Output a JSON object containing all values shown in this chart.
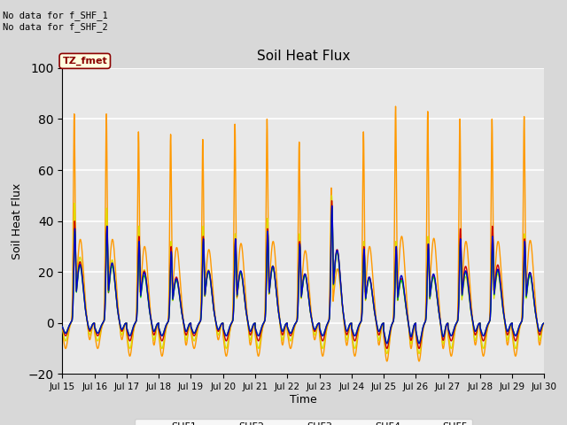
{
  "title": "Soil Heat Flux",
  "ylabel": "Soil Heat Flux",
  "xlabel": "Time",
  "ylim": [
    -20,
    100
  ],
  "yticks": [
    -20,
    0,
    20,
    40,
    60,
    80,
    100
  ],
  "xtick_labels": [
    "Jul 15",
    "Jul 16",
    "Jul 17",
    "Jul 18",
    "Jul 19",
    "Jul 20",
    "Jul 21",
    "Jul 22",
    "Jul 23",
    "Jul 24",
    "Jul 25",
    "Jul 26",
    "Jul 27",
    "Jul 28",
    "Jul 29",
    "Jul 30"
  ],
  "colors": {
    "SHF1": "#cc0000",
    "SHF2": "#ff9900",
    "SHF3": "#dddd00",
    "SHF4": "#00cc00",
    "SHF5": "#0000cc"
  },
  "no_data_text": [
    "No data for f_SHF_1",
    "No data for f_SHF_2"
  ],
  "tz_label": "TZ_fmet",
  "fig_bg_color": "#d8d8d8",
  "axes_bg_color": "#d8d8d8",
  "plot_bg_color": "#e8e8e8",
  "grid_color": "white",
  "day_peaks_shf2": [
    82,
    82,
    75,
    74,
    72,
    78,
    80,
    71,
    53,
    75,
    85,
    83,
    80,
    80,
    81
  ],
  "day_peaks_shf3": [
    47,
    45,
    38,
    32,
    38,
    35,
    41,
    35,
    50,
    32,
    32,
    34,
    33,
    35,
    35
  ],
  "day_peaks_shf1": [
    40,
    38,
    34,
    30,
    34,
    33,
    37,
    32,
    48,
    30,
    29,
    31,
    37,
    38,
    33
  ],
  "day_peaks_shf4": [
    36,
    36,
    30,
    27,
    32,
    32,
    35,
    30,
    45,
    28,
    27,
    29,
    32,
    33,
    30
  ],
  "day_peaks_shf5": [
    37,
    38,
    32,
    28,
    33,
    33,
    36,
    31,
    46,
    29,
    30,
    31,
    33,
    34,
    32
  ],
  "day_neg_shf2": [
    -10,
    -10,
    -13,
    -13,
    -10,
    -13,
    -13,
    -10,
    -13,
    -13,
    -15,
    -15,
    -13,
    -13,
    -13
  ],
  "day_neg_shf3": [
    -7,
    -7,
    -10,
    -10,
    -7,
    -10,
    -10,
    -7,
    -10,
    -10,
    -12,
    -12,
    -10,
    -10,
    -10
  ],
  "day_neg_shf1": [
    -5,
    -5,
    -7,
    -7,
    -5,
    -7,
    -7,
    -5,
    -7,
    -7,
    -10,
    -10,
    -7,
    -7,
    -7
  ],
  "day_neg_shf4": [
    -4,
    -4,
    -5,
    -5,
    -4,
    -5,
    -5,
    -4,
    -5,
    -5,
    -8,
    -8,
    -5,
    -5,
    -5
  ],
  "day_neg_shf5": [
    -4,
    -4,
    -5,
    -5,
    -4,
    -5,
    -5,
    -4,
    -5,
    -5,
    -8,
    -8,
    -5,
    -5,
    -5
  ]
}
